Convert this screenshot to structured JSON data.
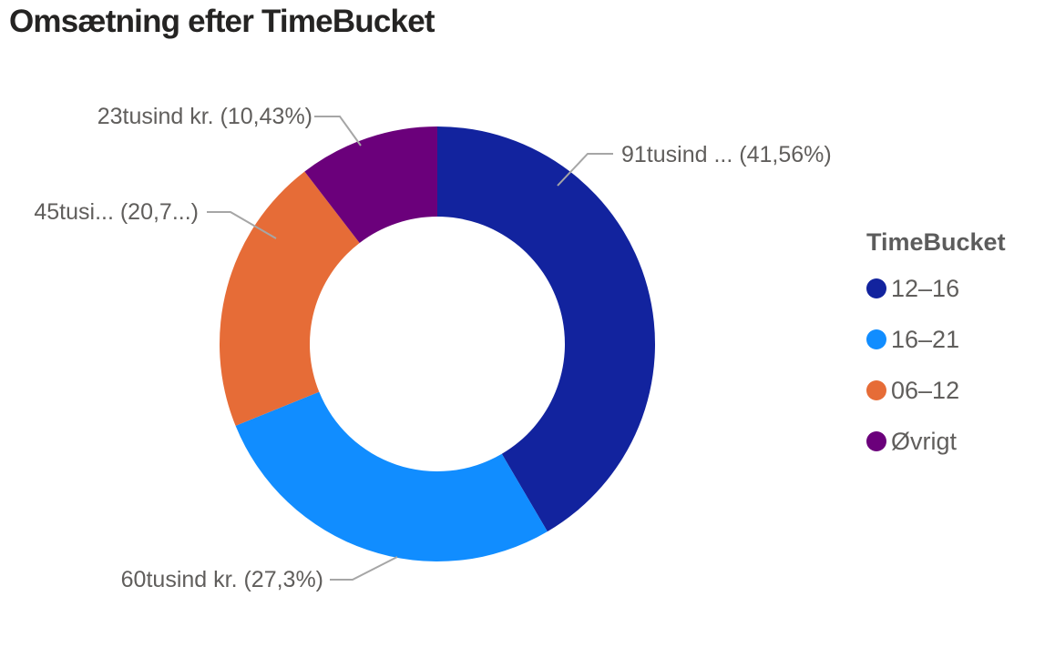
{
  "title": "Omsætning efter TimeBucket",
  "chart_data": {
    "type": "pie",
    "subtype": "donut",
    "title": "Omsætning efter TimeBucket",
    "unit": "tusind kr.",
    "legend": {
      "title": "TimeBucket",
      "position": "right"
    },
    "slices": [
      {
        "legend_label": "12–16",
        "value_thousand_kr": 91,
        "percent": 41.56,
        "callout": "91tusind ... (41,56%)",
        "color": "#12239E"
      },
      {
        "legend_label": "16–21",
        "value_thousand_kr": 60,
        "percent": 27.3,
        "callout": "60tusind kr. (27,3%)",
        "color": "#118DFF"
      },
      {
        "legend_label": "06–12",
        "value_thousand_kr": 45,
        "percent": 20.71,
        "callout": "45tusi... (20,7...)",
        "color": "#E66C37"
      },
      {
        "legend_label": "Øvrigt",
        "value_thousand_kr": 23,
        "percent": 10.43,
        "callout": "23tusind kr. (10,43%)",
        "color": "#6B007B"
      }
    ],
    "text_colors": {
      "title": "#252423",
      "detail_labels": "#605E5C",
      "leader_lines": "#A6A6A6"
    },
    "layout": {
      "donut_center": [
        480,
        378
      ],
      "outer_radius": 239,
      "inner_radius": 140,
      "start_angle_deg": 0,
      "direction": "clockwise"
    }
  }
}
